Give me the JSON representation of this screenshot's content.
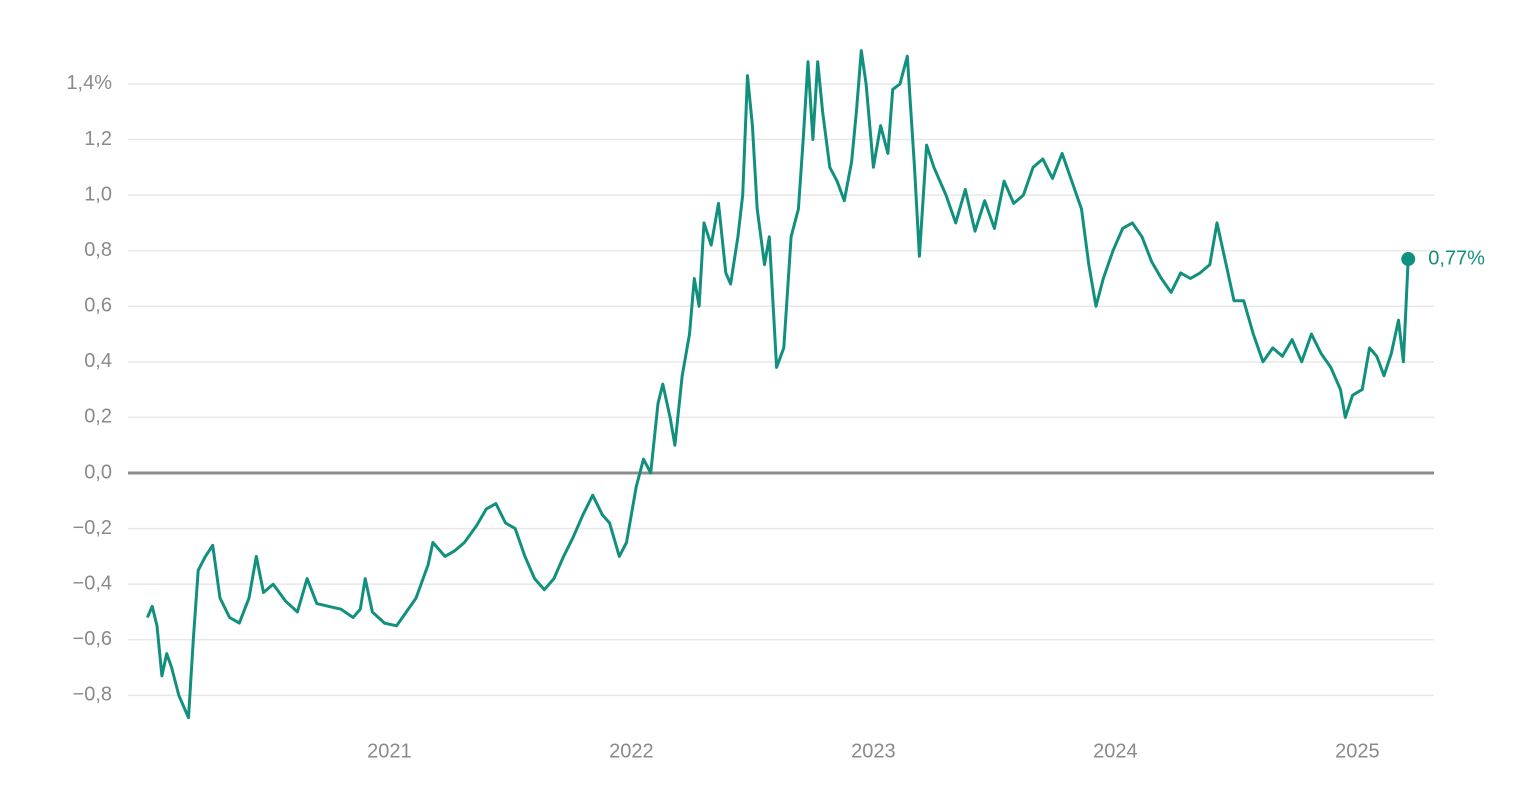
{
  "chart_data": {
    "type": "line",
    "x": [
      2020.0,
      2020.02,
      2020.04,
      2020.06,
      2020.08,
      2020.1,
      2020.13,
      2020.17,
      2020.19,
      2020.21,
      2020.24,
      2020.27,
      2020.3,
      2020.34,
      2020.38,
      2020.42,
      2020.45,
      2020.48,
      2020.52,
      2020.57,
      2020.62,
      2020.66,
      2020.7,
      2020.75,
      2020.8,
      2020.85,
      2020.88,
      2020.9,
      2020.93,
      2020.98,
      2021.03,
      2021.07,
      2021.11,
      2021.16,
      2021.18,
      2021.23,
      2021.27,
      2021.31,
      2021.36,
      2021.4,
      2021.44,
      2021.48,
      2021.52,
      2021.56,
      2021.6,
      2021.64,
      2021.68,
      2021.72,
      2021.76,
      2021.8,
      2021.84,
      2021.88,
      2021.91,
      2021.95,
      2021.98,
      2022.02,
      2022.05,
      2022.08,
      2022.11,
      2022.13,
      2022.16,
      2022.18,
      2022.21,
      2022.24,
      2022.26,
      2022.28,
      2022.3,
      2022.33,
      2022.36,
      2022.39,
      2022.41,
      2022.44,
      2022.46,
      2022.48,
      2022.5,
      2022.52,
      2022.55,
      2022.57,
      2022.6,
      2022.63,
      2022.66,
      2022.69,
      2022.71,
      2022.73,
      2022.75,
      2022.77,
      2022.79,
      2022.82,
      2022.85,
      2022.88,
      2022.91,
      2022.93,
      2022.95,
      2022.97,
      2023.0,
      2023.03,
      2023.06,
      2023.08,
      2023.11,
      2023.14,
      2023.17,
      2023.19,
      2023.22,
      2023.25,
      2023.3,
      2023.34,
      2023.38,
      2023.42,
      2023.46,
      2023.5,
      2023.54,
      2023.58,
      2023.62,
      2023.66,
      2023.7,
      2023.74,
      2023.78,
      2023.82,
      2023.86,
      2023.89,
      2023.92,
      2023.95,
      2023.99,
      2024.03,
      2024.07,
      2024.11,
      2024.15,
      2024.19,
      2024.23,
      2024.27,
      2024.31,
      2024.35,
      2024.39,
      2024.42,
      2024.45,
      2024.49,
      2024.53,
      2024.57,
      2024.61,
      2024.65,
      2024.69,
      2024.73,
      2024.77,
      2024.81,
      2024.85,
      2024.89,
      2024.93,
      2024.95,
      2024.98,
      2025.02,
      2025.05,
      2025.08,
      2025.11,
      2025.14,
      2025.17,
      2025.19,
      2025.21
    ],
    "series": [
      {
        "color": "#12907e",
        "values": [
          -0.52,
          -0.48,
          -0.55,
          -0.73,
          -0.65,
          -0.7,
          -0.8,
          -0.88,
          -0.6,
          -0.35,
          -0.3,
          -0.26,
          -0.45,
          -0.52,
          -0.54,
          -0.45,
          -0.3,
          -0.43,
          -0.4,
          -0.46,
          -0.5,
          -0.38,
          -0.47,
          -0.48,
          -0.49,
          -0.52,
          -0.49,
          -0.38,
          -0.5,
          -0.54,
          -0.55,
          -0.5,
          -0.45,
          -0.33,
          -0.25,
          -0.3,
          -0.28,
          -0.25,
          -0.19,
          -0.13,
          -0.11,
          -0.18,
          -0.2,
          -0.3,
          -0.38,
          -0.42,
          -0.38,
          -0.3,
          -0.23,
          -0.15,
          -0.08,
          -0.15,
          -0.18,
          -0.3,
          -0.25,
          -0.05,
          0.05,
          0.0,
          0.25,
          0.32,
          0.2,
          0.1,
          0.35,
          0.5,
          0.7,
          0.6,
          0.9,
          0.82,
          0.97,
          0.72,
          0.68,
          0.85,
          1.0,
          1.43,
          1.25,
          0.95,
          0.75,
          0.85,
          0.38,
          0.45,
          0.85,
          0.95,
          1.2,
          1.48,
          1.2,
          1.48,
          1.3,
          1.1,
          1.05,
          0.98,
          1.12,
          1.3,
          1.52,
          1.4,
          1.1,
          1.25,
          1.15,
          1.38,
          1.4,
          1.5,
          1.1,
          0.78,
          1.18,
          1.1,
          1.0,
          0.9,
          1.02,
          0.87,
          0.98,
          0.88,
          1.05,
          0.97,
          1.0,
          1.1,
          1.13,
          1.06,
          1.15,
          1.05,
          0.95,
          0.75,
          0.6,
          0.7,
          0.8,
          0.88,
          0.9,
          0.85,
          0.76,
          0.7,
          0.65,
          0.72,
          0.7,
          0.72,
          0.75,
          0.9,
          0.78,
          0.62,
          0.62,
          0.5,
          0.4,
          0.45,
          0.42,
          0.48,
          0.4,
          0.5,
          0.43,
          0.38,
          0.3,
          0.2,
          0.28,
          0.3,
          0.45,
          0.42,
          0.35,
          0.43,
          0.55,
          0.4,
          0.77
        ]
      }
    ],
    "end_label": "0,77%",
    "xlim": [
      2019.92,
      2025.3
    ],
    "xticks": [
      2021,
      2022,
      2023,
      2024,
      2025
    ],
    "ylim": [
      -0.9,
      1.6
    ],
    "yticks": [
      {
        "value": -0.8,
        "label": "−0,8"
      },
      {
        "value": -0.6,
        "label": "−0,6"
      },
      {
        "value": -0.4,
        "label": "−0,4"
      },
      {
        "value": -0.2,
        "label": "−0,2"
      },
      {
        "value": 0,
        "label": "0,0"
      },
      {
        "value": 0.2,
        "label": "0,2"
      },
      {
        "value": 0.4,
        "label": "0,4"
      },
      {
        "value": 0.6,
        "label": "0,6"
      },
      {
        "value": 0.8,
        "label": "0,8"
      },
      {
        "value": 1.0,
        "label": "1,0"
      },
      {
        "value": 1.2,
        "label": "1,2"
      },
      {
        "value": 1.4,
        "label": "1,4%"
      }
    ],
    "grid": true
  }
}
